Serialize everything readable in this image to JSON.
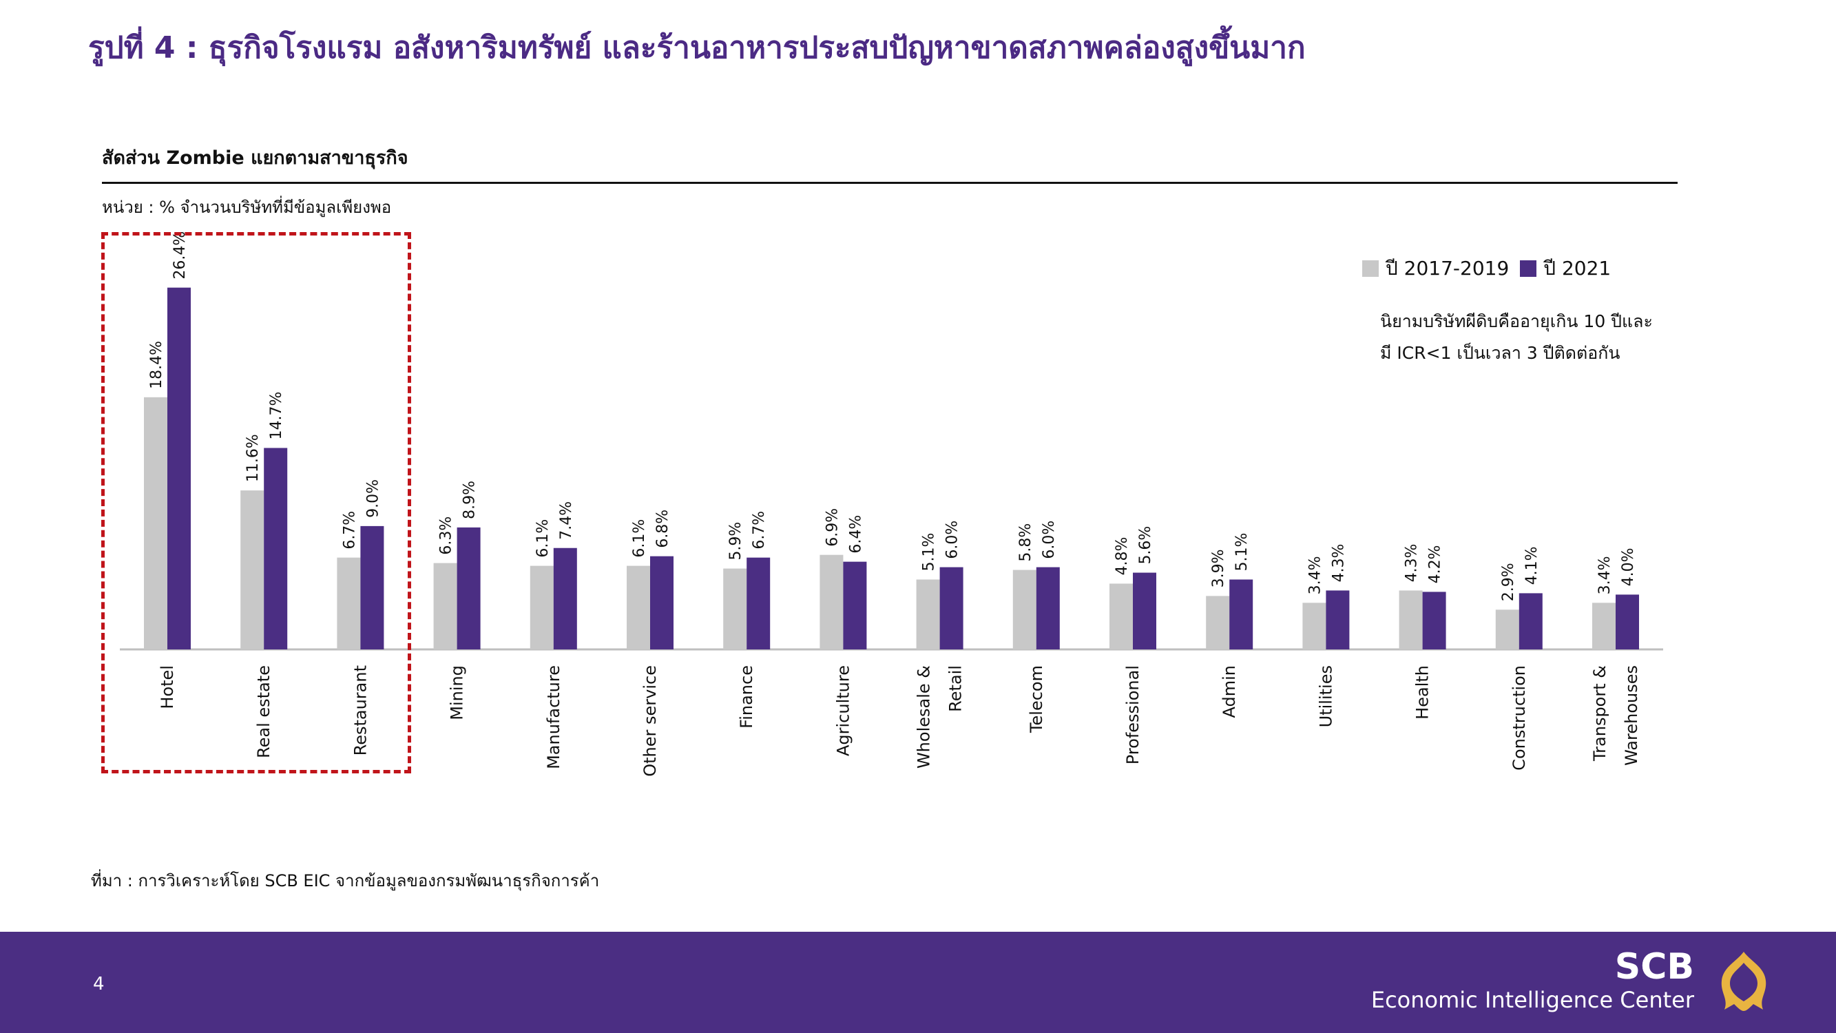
{
  "page": {
    "title": "รูปที่ 4 : ธุรกิจโรงแรม อสังหาริมทรัพย์ และร้านอาหารประสบปัญหาขาดสภาพคล่องสูงขึ้นมาก",
    "chart_heading": "สัดส่วน Zombie แยกตามสาขาธุรกิจ",
    "unit_label": "หน่วย : % จำนวนบริษัทที่มีข้อมูลเพียงพอ",
    "definition_line1": "นิยามบริษัทผีดิบคืออายุเกิน 10 ปีและ",
    "definition_line2": "มี ICR<1 เป็นเวลา 3 ปีติดต่อกัน",
    "source": "ที่มา : การวิเคราะห์โดย SCB EIC จากข้อมูลของกรมพัฒนาธุรกิจการค้า",
    "page_number": "4",
    "brand_name": "SCB",
    "brand_subtitle": "Economic Intelligence Center",
    "logo_icon": "scb-thai-ornament-logo-icon"
  },
  "colors": {
    "title": "#4b2a84",
    "series_prev": "#c8c8c8",
    "series_2021": "#4b2e83",
    "highlight_box": "#c0141a",
    "footer": "#4b2e83",
    "logo": "#e8b441",
    "axis": "#bfbfbf"
  },
  "chart_data": {
    "type": "bar",
    "title": "สัดส่วน Zombie แยกตามสาขาธุรกิจ",
    "ylabel": "",
    "xlabel": "",
    "ylim": [
      0,
      30
    ],
    "grid": false,
    "legend_position": "top-right",
    "categories": [
      [
        "Hotel"
      ],
      [
        "Real estate"
      ],
      [
        "Restaurant"
      ],
      [
        "Mining"
      ],
      [
        "Manufacture"
      ],
      [
        "Other service"
      ],
      [
        "Finance"
      ],
      [
        "Agriculture"
      ],
      [
        "Wholesale &",
        "Retail"
      ],
      [
        "Telecom"
      ],
      [
        "Professional"
      ],
      [
        "Admin"
      ],
      [
        "Utilities"
      ],
      [
        "Health"
      ],
      [
        "Construction"
      ],
      [
        "Transport &",
        "Warehouses"
      ]
    ],
    "series": [
      {
        "name": "ปี 2017-2019",
        "values": [
          18.4,
          11.6,
          6.7,
          6.3,
          6.1,
          6.1,
          5.9,
          6.9,
          5.1,
          5.8,
          4.8,
          3.9,
          3.4,
          4.3,
          2.9,
          3.4
        ],
        "labels": [
          "18.4%",
          "11.6%",
          "6.7%",
          "6.3%",
          "6.1%",
          "6.1%",
          "5.9%",
          "6.9%",
          "5.1%",
          "5.8%",
          "4.8%",
          "3.9%",
          "3.4%",
          "4.3%",
          "2.9%",
          "3.4%"
        ]
      },
      {
        "name": "ปี 2021",
        "values": [
          26.4,
          14.7,
          9.0,
          8.9,
          7.4,
          6.8,
          6.7,
          6.4,
          6.0,
          6.0,
          5.6,
          5.1,
          4.3,
          4.2,
          4.1,
          4.0
        ],
        "labels": [
          "26.4%",
          "14.7%",
          "9.0%",
          "8.9%",
          "7.4%",
          "6.8%",
          "6.7%",
          "6.4%",
          "6.0%",
          "6.0%",
          "5.6%",
          "5.1%",
          "4.3%",
          "4.2%",
          "4.1%",
          "4.0%"
        ]
      }
    ],
    "highlighted_categories": [
      "Hotel",
      "Real estate",
      "Restaurant"
    ]
  }
}
